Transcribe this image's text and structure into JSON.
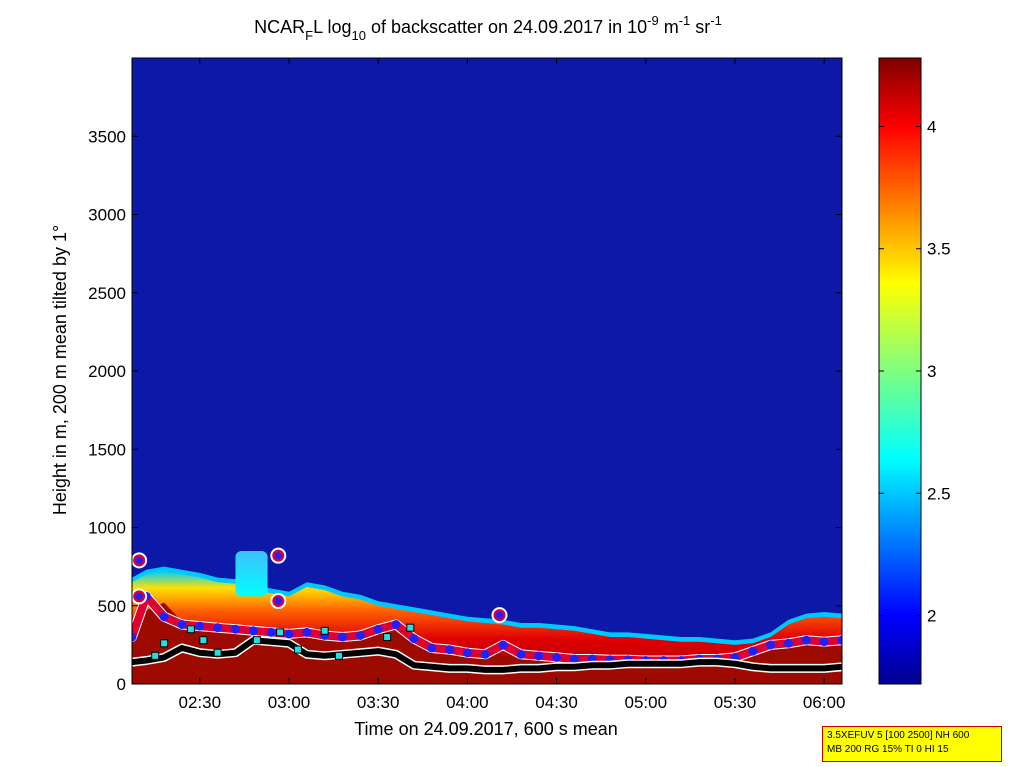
{
  "chart_data": {
    "type": "heatmap",
    "title": {
      "prefix": "NCAR",
      "sub1": "F",
      "mid": "L log",
      "sub2": "10",
      "rest": " of backscatter on 24.09.2017 in 10",
      "sup1": "-9",
      "unit1": " m",
      "sup2": "-1",
      "unit2": " sr",
      "sup3": "-1"
    },
    "xlabel": "Time on 24.09.2017, 600 s mean",
    "ylabel": "Height in m, 200 m mean tilted by 1°",
    "x_ticks": [
      "02:30",
      "03:00",
      "03:30",
      "04:00",
      "04:30",
      "05:00",
      "05:30",
      "06:00"
    ],
    "x_tick_hours": [
      2.5,
      3.0,
      3.5,
      4.0,
      4.5,
      5.0,
      5.5,
      6.0
    ],
    "xlim_hours": [
      2.12,
      6.1
    ],
    "y_ticks": [
      0,
      500,
      1000,
      1500,
      2000,
      2500,
      3000,
      3500
    ],
    "ylim": [
      0,
      4000
    ],
    "colorbar": {
      "ticks": [
        2,
        2.5,
        3,
        3.5,
        4
      ],
      "tick_labels": [
        "2",
        "2.5",
        "3",
        "3.5",
        "4"
      ],
      "range": [
        1.72,
        4.28
      ],
      "colormap": "jet"
    },
    "aerosol_layer_top": {
      "hours": [
        2.12,
        2.2,
        2.3,
        2.4,
        2.5,
        2.6,
        2.7,
        2.8,
        2.9,
        3.0,
        3.1,
        3.2,
        3.3,
        3.4,
        3.5,
        3.6,
        3.7,
        3.8,
        3.9,
        4.0,
        4.1,
        4.2,
        4.3,
        4.4,
        4.5,
        4.6,
        4.7,
        4.8,
        4.9,
        5.0,
        5.1,
        5.2,
        5.3,
        5.4,
        5.5,
        5.6,
        5.7,
        5.8,
        5.9,
        6.0,
        6.1
      ],
      "height_m": [
        650,
        700,
        720,
        700,
        680,
        650,
        640,
        600,
        580,
        560,
        620,
        600,
        560,
        540,
        500,
        480,
        460,
        440,
        420,
        400,
        390,
        380,
        360,
        360,
        350,
        340,
        320,
        300,
        300,
        290,
        280,
        270,
        270,
        260,
        250,
        260,
        300,
        380,
        420,
        430,
        420
      ]
    },
    "high_backscatter_top": {
      "hours": [
        2.12,
        2.2,
        2.3,
        2.4,
        2.5,
        2.6,
        2.7,
        2.8,
        2.9,
        3.0,
        3.1,
        3.2,
        3.3,
        3.4,
        3.5,
        3.6,
        3.7,
        3.8,
        3.9,
        4.0,
        4.1,
        4.2,
        4.3,
        4.4,
        4.5,
        4.6,
        4.7,
        4.8,
        4.9,
        5.0,
        5.1,
        5.2,
        5.3,
        5.4,
        5.5,
        5.6,
        5.7,
        5.8,
        5.9,
        6.0,
        6.1
      ],
      "height_m": [
        380,
        470,
        520,
        400,
        380,
        370,
        360,
        350,
        340,
        330,
        320,
        310,
        290,
        300,
        330,
        360,
        300,
        240,
        220,
        200,
        190,
        190,
        180,
        170,
        160,
        160,
        150,
        150,
        150,
        140,
        140,
        140,
        150,
        150,
        160,
        200,
        240,
        260,
        280,
        270,
        280
      ]
    },
    "smoke_plume": {
      "hours": [
        2.7,
        2.88
      ],
      "height_m": [
        560,
        850
      ],
      "value": 2.6
    },
    "marked_layer_heights": {
      "hours": [
        2.12,
        2.2,
        2.3,
        2.4,
        2.5,
        2.6,
        2.7,
        2.8,
        2.9,
        3.0,
        3.1,
        3.2,
        3.3,
        3.4,
        3.5,
        3.6,
        3.7,
        3.8,
        3.9,
        4.0,
        4.1,
        4.2,
        4.3,
        4.4,
        4.5,
        4.6,
        4.7,
        4.8,
        4.9,
        5.0,
        5.1,
        5.2,
        5.3,
        5.4,
        5.5,
        5.6,
        5.7,
        5.8,
        5.9,
        6.0,
        6.1
      ],
      "height_m": [
        300,
        560,
        430,
        380,
        370,
        360,
        350,
        340,
        330,
        320,
        330,
        310,
        300,
        310,
        350,
        380,
        290,
        230,
        220,
        200,
        190,
        250,
        190,
        180,
        170,
        160,
        160,
        155,
        155,
        150,
        150,
        150,
        160,
        160,
        170,
        210,
        250,
        260,
        280,
        270,
        280
      ]
    },
    "isolated_markers": {
      "hours": [
        2.16,
        2.16,
        2.94,
        2.94,
        4.18
      ],
      "height_m": [
        790,
        560,
        820,
        530,
        440
      ]
    },
    "low_layer_heights": {
      "hours": [
        2.12,
        2.2,
        2.3,
        2.4,
        2.5,
        2.6,
        2.7,
        2.8,
        2.9,
        3.0,
        3.1,
        3.2,
        3.3,
        3.4,
        3.5,
        3.6,
        3.7,
        3.8,
        3.9,
        4.0,
        4.1,
        4.2,
        4.3,
        4.4,
        4.5,
        4.6,
        4.7,
        4.8,
        4.9,
        5.0,
        5.1,
        5.2,
        5.3,
        5.4,
        5.5,
        5.6,
        5.7,
        5.8,
        5.9,
        6.0,
        6.1
      ],
      "height_m": [
        140,
        150,
        170,
        230,
        200,
        190,
        200,
        280,
        270,
        260,
        190,
        180,
        190,
        200,
        210,
        190,
        120,
        110,
        100,
        100,
        90,
        90,
        100,
        100,
        110,
        110,
        120,
        120,
        130,
        130,
        130,
        130,
        140,
        140,
        130,
        110,
        100,
        100,
        100,
        100,
        110
      ]
    },
    "cyan_markers": {
      "hours": [
        2.25,
        2.3,
        2.45,
        2.52,
        2.6,
        2.82,
        2.95,
        3.05,
        3.2,
        3.28,
        3.55,
        3.68
      ],
      "height_m": [
        180,
        260,
        350,
        280,
        200,
        280,
        330,
        220,
        340,
        180,
        300,
        360
      ]
    },
    "info_box": {
      "line1": "3.5XEFUV 5 [100 2500] NH 600",
      "line2": "MB 200 RG 15% TI 0 HI 15"
    }
  }
}
